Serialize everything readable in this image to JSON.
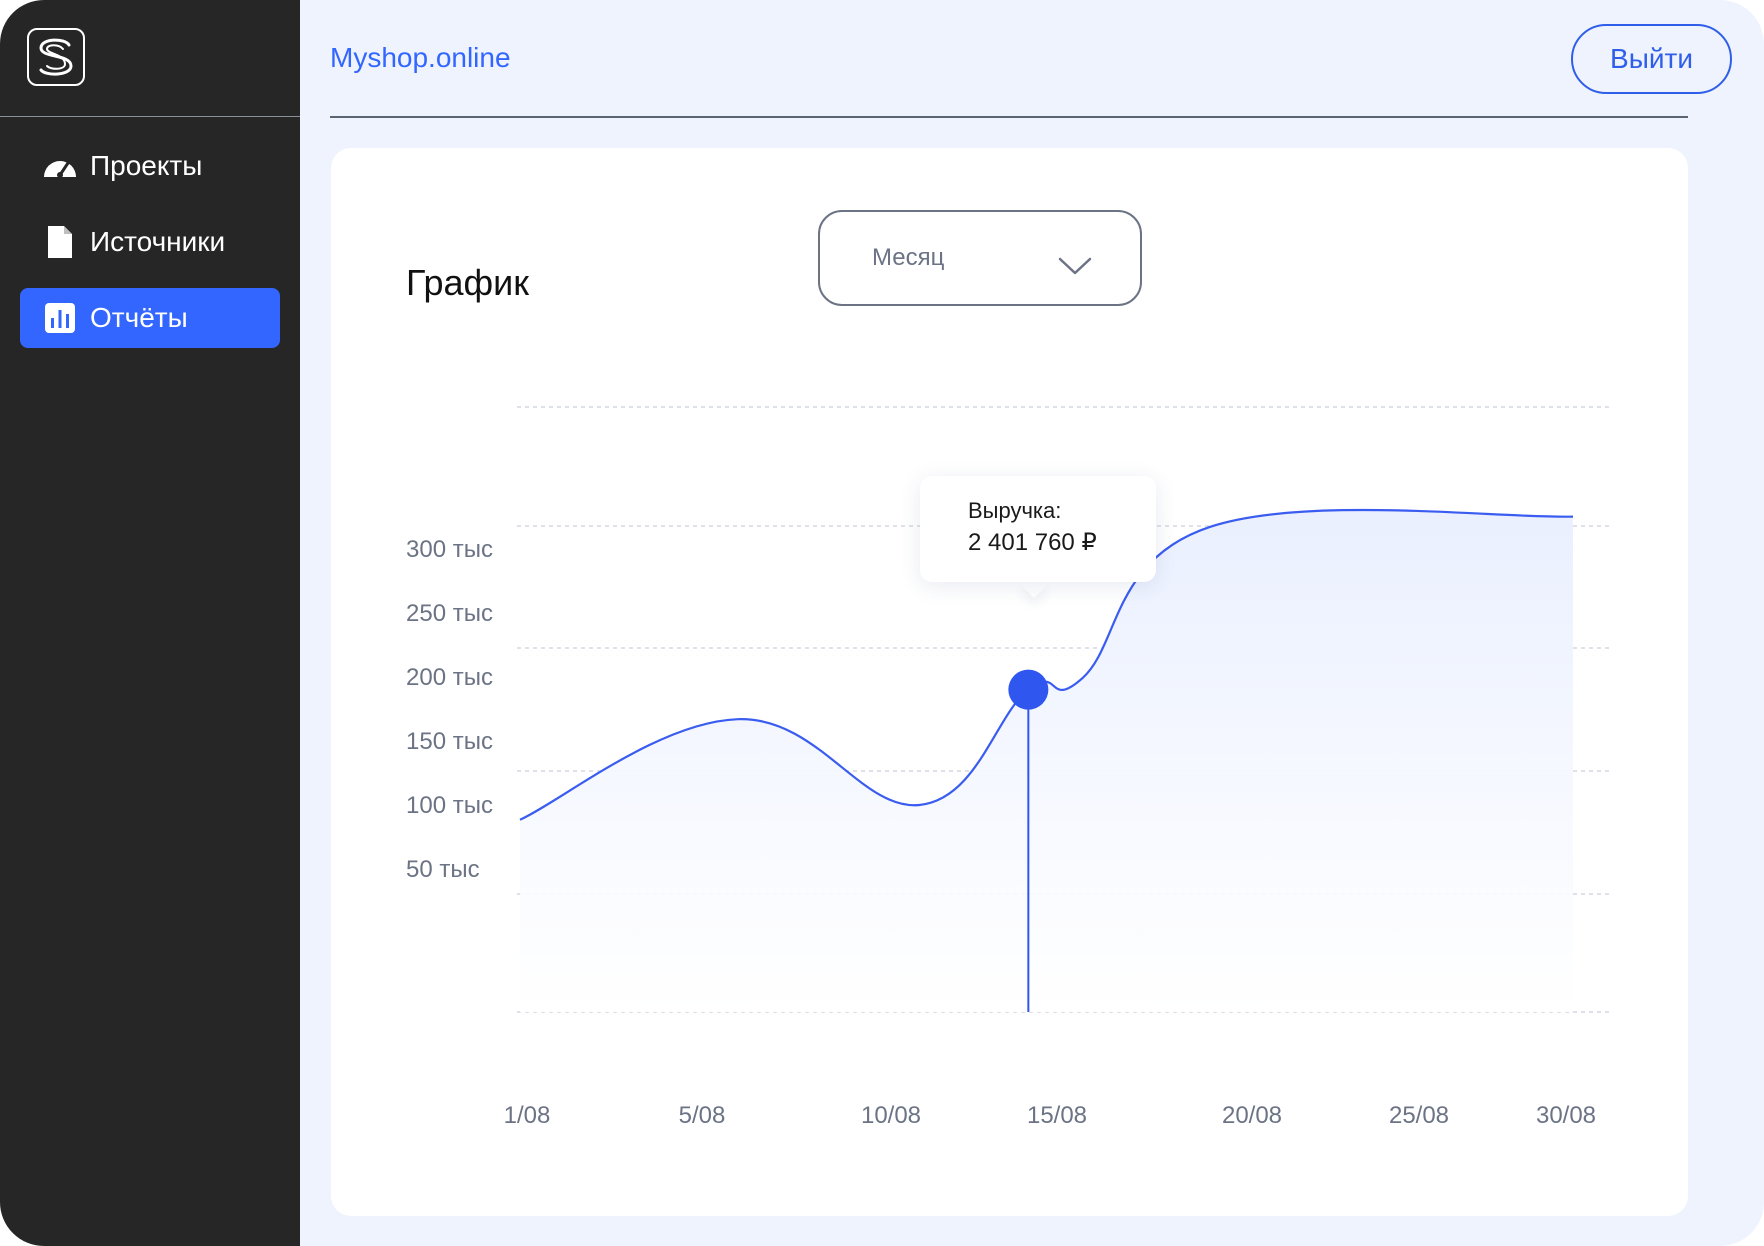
{
  "sidebar": {
    "logo_icon": "s-logo-icon",
    "items": [
      {
        "label": "Проекты",
        "icon": "speedometer-icon",
        "active": false
      },
      {
        "label": "Источники",
        "icon": "document-icon",
        "active": false
      },
      {
        "label": "Отчёты",
        "icon": "bar-chart-icon",
        "active": true
      }
    ]
  },
  "header": {
    "site": "Myshop.online",
    "logout_label": "Выйти"
  },
  "main": {
    "title": "График",
    "period_select": {
      "value": "Месяц",
      "icon": "chevron-down-icon"
    },
    "tooltip": {
      "label": "Выручка:",
      "value": "2 401 760 ₽"
    }
  },
  "colors": {
    "accent": "#3366ff",
    "sidebar_bg": "#262626",
    "page_bg": "#eef3fd",
    "line": "#3a5cf0"
  },
  "chart_data": {
    "type": "area",
    "title": "",
    "xlabel": "",
    "ylabel": "",
    "x_ticks": [
      "1/08",
      "5/08",
      "10/08",
      "15/08",
      "20/08",
      "25/08",
      "30/08"
    ],
    "y_ticks": [
      "300 тыс",
      "250 тыс",
      "200 тыс",
      "150 тыс",
      "100 тыс",
      "50 тыс"
    ],
    "ylim": [
      0,
      350
    ],
    "grid": true,
    "series": [
      {
        "values": [
          {
            "x": 1,
            "y": 130
          },
          {
            "x": 7,
            "y": 198
          },
          {
            "x": 12,
            "y": 140
          },
          {
            "x": 15,
            "y": 218
          },
          {
            "x": 16.5,
            "y": 226
          },
          {
            "x": 20,
            "y": 328
          },
          {
            "x": 30,
            "y": 335
          }
        ]
      }
    ],
    "highlight": {
      "x": 15,
      "y": 218
    }
  }
}
